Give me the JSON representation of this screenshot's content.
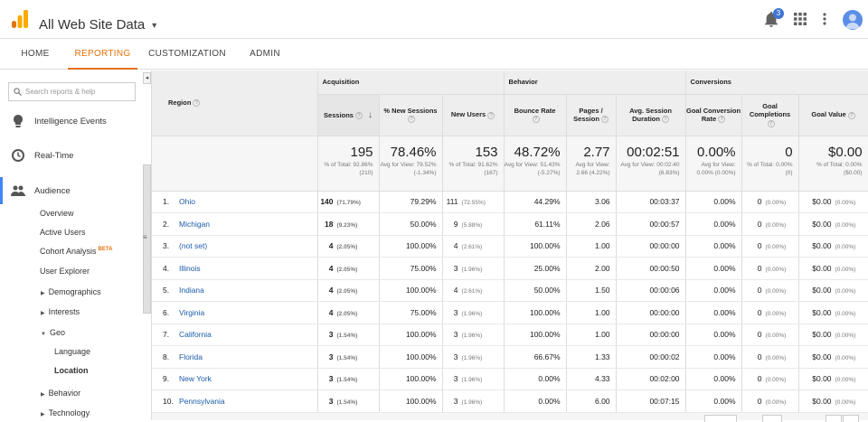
{
  "header": {
    "title": "All Web Site Data",
    "notifications_count": "3"
  },
  "nav": {
    "tabs": [
      "HOME",
      "REPORTING",
      "CUSTOMIZATION",
      "ADMIN"
    ],
    "active": "REPORTING"
  },
  "sidebar": {
    "search_placeholder": "Search reports & help",
    "sections": {
      "intelligence": "Intelligence Events",
      "realtime": "Real-Time",
      "audience": "Audience"
    },
    "items": {
      "overview": "Overview",
      "active_users": "Active Users",
      "cohort": "Cohort Analysis",
      "cohort_badge": "BETA",
      "user_explorer": "User Explorer",
      "demographics": "Demographics",
      "interests": "Interests",
      "geo": "Geo",
      "language": "Language",
      "location": "Location",
      "behavior": "Behavior",
      "technology": "Technology"
    }
  },
  "table": {
    "groups": {
      "region": "Region",
      "acquisition": "Acquisition",
      "behavior": "Behavior",
      "conversions": "Conversions"
    },
    "columns": {
      "sessions": "Sessions",
      "new_sessions": "% New Sessions",
      "new_users": "New Users",
      "bounce_rate": "Bounce Rate",
      "pages_session": "Pages / Session",
      "avg_duration": "Avg. Session Duration",
      "goal_conv": "Goal Conversion Rate",
      "goal_completions": "Goal Completions",
      "goal_value": "Goal Value"
    },
    "totals": {
      "sessions": "195",
      "sessions_sub": "% of Total: 92.86% (210)",
      "new_sessions": "78.46%",
      "new_sessions_sub": "Avg for View: 79.52% (-1.34%)",
      "new_users": "153",
      "new_users_sub": "% of Total: 91.62% (167)",
      "bounce_rate": "48.72%",
      "bounce_rate_sub": "Avg for View: 51.43% (-5.27%)",
      "pages_session": "2.77",
      "pages_session_sub": "Avg for View: 2.66 (4.22%)",
      "avg_duration": "00:02:51",
      "avg_duration_sub": "Avg for View: 00:02:40 (6.83%)",
      "goal_conv": "0.00%",
      "goal_conv_sub": "Avg for View: 0.00% (0.00%)",
      "goal_completions": "0",
      "goal_completions_sub": "% of Total: 0.00% (0)",
      "goal_value": "$0.00",
      "goal_value_sub": "% of Total: 0.00% ($0.00)"
    },
    "rows": [
      {
        "idx": "1.",
        "region": "Ohio",
        "sessions": "140",
        "sessions_pct": "(71.79%)",
        "new_sessions": "79.29%",
        "new_users": "111",
        "new_users_pct": "(72.55%)",
        "bounce": "44.29%",
        "pages": "3.06",
        "duration": "00:03:37",
        "conv": "0.00%",
        "comp": "0",
        "comp_pct": "(0.00%)",
        "value": "$0.00",
        "value_pct": "(0.00%)"
      },
      {
        "idx": "2.",
        "region": "Michigan",
        "sessions": "18",
        "sessions_pct": "(9.23%)",
        "new_sessions": "50.00%",
        "new_users": "9",
        "new_users_pct": "(5.88%)",
        "bounce": "61.11%",
        "pages": "2.06",
        "duration": "00:00:57",
        "conv": "0.00%",
        "comp": "0",
        "comp_pct": "(0.00%)",
        "value": "$0.00",
        "value_pct": "(0.00%)"
      },
      {
        "idx": "3.",
        "region": "(not set)",
        "sessions": "4",
        "sessions_pct": "(2.05%)",
        "new_sessions": "100.00%",
        "new_users": "4",
        "new_users_pct": "(2.61%)",
        "bounce": "100.00%",
        "pages": "1.00",
        "duration": "00:00:00",
        "conv": "0.00%",
        "comp": "0",
        "comp_pct": "(0.00%)",
        "value": "$0.00",
        "value_pct": "(0.00%)"
      },
      {
        "idx": "4.",
        "region": "Illinois",
        "sessions": "4",
        "sessions_pct": "(2.05%)",
        "new_sessions": "75.00%",
        "new_users": "3",
        "new_users_pct": "(1.96%)",
        "bounce": "25.00%",
        "pages": "2.00",
        "duration": "00:00:50",
        "conv": "0.00%",
        "comp": "0",
        "comp_pct": "(0.00%)",
        "value": "$0.00",
        "value_pct": "(0.00%)"
      },
      {
        "idx": "5.",
        "region": "Indiana",
        "sessions": "4",
        "sessions_pct": "(2.05%)",
        "new_sessions": "100.00%",
        "new_users": "4",
        "new_users_pct": "(2.61%)",
        "bounce": "50.00%",
        "pages": "1.50",
        "duration": "00:00:06",
        "conv": "0.00%",
        "comp": "0",
        "comp_pct": "(0.00%)",
        "value": "$0.00",
        "value_pct": "(0.00%)"
      },
      {
        "idx": "6.",
        "region": "Virginia",
        "sessions": "4",
        "sessions_pct": "(2.05%)",
        "new_sessions": "75.00%",
        "new_users": "3",
        "new_users_pct": "(1.96%)",
        "bounce": "100.00%",
        "pages": "1.00",
        "duration": "00:00:00",
        "conv": "0.00%",
        "comp": "0",
        "comp_pct": "(0.00%)",
        "value": "$0.00",
        "value_pct": "(0.00%)"
      },
      {
        "idx": "7.",
        "region": "California",
        "sessions": "3",
        "sessions_pct": "(1.54%)",
        "new_sessions": "100.00%",
        "new_users": "3",
        "new_users_pct": "(1.96%)",
        "bounce": "100.00%",
        "pages": "1.00",
        "duration": "00:00:00",
        "conv": "0.00%",
        "comp": "0",
        "comp_pct": "(0.00%)",
        "value": "$0.00",
        "value_pct": "(0.00%)"
      },
      {
        "idx": "8.",
        "region": "Florida",
        "sessions": "3",
        "sessions_pct": "(1.54%)",
        "new_sessions": "100.00%",
        "new_users": "3",
        "new_users_pct": "(1.96%)",
        "bounce": "66.67%",
        "pages": "1.33",
        "duration": "00:00:02",
        "conv": "0.00%",
        "comp": "0",
        "comp_pct": "(0.00%)",
        "value": "$0.00",
        "value_pct": "(0.00%)"
      },
      {
        "idx": "9.",
        "region": "New York",
        "sessions": "3",
        "sessions_pct": "(1.54%)",
        "new_sessions": "100.00%",
        "new_users": "3",
        "new_users_pct": "(1.96%)",
        "bounce": "0.00%",
        "pages": "4.33",
        "duration": "00:02:00",
        "conv": "0.00%",
        "comp": "0",
        "comp_pct": "(0.00%)",
        "value": "$0.00",
        "value_pct": "(0.00%)"
      },
      {
        "idx": "10.",
        "region": "Pennsylvania",
        "sessions": "3",
        "sessions_pct": "(1.54%)",
        "new_sessions": "100.00%",
        "new_users": "3",
        "new_users_pct": "(1.96%)",
        "bounce": "0.00%",
        "pages": "6.00",
        "duration": "00:07:15",
        "conv": "0.00%",
        "comp": "0",
        "comp_pct": "(0.00%)",
        "value": "$0.00",
        "value_pct": "(0.00%)"
      }
    ]
  },
  "colors": {
    "accent": "#e8710a",
    "link": "#1a5ba8",
    "active_section": "#4285f4"
  }
}
